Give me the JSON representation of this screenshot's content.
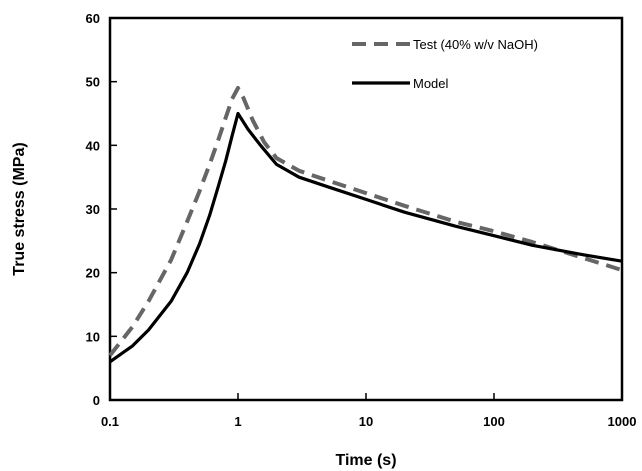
{
  "chart_data": {
    "type": "line",
    "xlabel": "Time (s)",
    "ylabel": "True stress (MPa)",
    "xscale": "log",
    "xlim": [
      0.1,
      1000
    ],
    "ylim": [
      0,
      60
    ],
    "x_ticks": [
      0.1,
      1,
      10,
      100,
      1000
    ],
    "x_tick_labels": [
      "0.1",
      "1",
      "10",
      "100",
      "1000"
    ],
    "y_ticks": [
      0,
      10,
      20,
      30,
      40,
      50,
      60
    ],
    "y_tick_labels": [
      "0",
      "10",
      "20",
      "30",
      "40",
      "50",
      "60"
    ],
    "grid": false,
    "legend_position": "top-right",
    "series": [
      {
        "name": "Test (40% w/v NaOH)",
        "style": "dashed",
        "color": "#666666",
        "x": [
          0.1,
          0.15,
          0.2,
          0.3,
          0.4,
          0.5,
          0.6,
          0.7,
          0.8,
          0.9,
          1.0,
          1.1,
          1.3,
          1.6,
          2,
          3,
          5,
          10,
          20,
          50,
          100,
          200,
          500,
          1000
        ],
        "y": [
          7.0,
          11.5,
          15.5,
          22.0,
          28.0,
          32.8,
          37.0,
          40.8,
          44.3,
          47.3,
          49.0,
          47.5,
          44.0,
          40.5,
          38.0,
          36.0,
          34.5,
          32.5,
          30.5,
          28.0,
          26.5,
          24.8,
          22.3,
          20.4
        ]
      },
      {
        "name": "Model",
        "style": "solid",
        "color": "#000000",
        "x": [
          0.1,
          0.15,
          0.2,
          0.3,
          0.4,
          0.5,
          0.6,
          0.7,
          0.8,
          0.9,
          1.0,
          1.2,
          1.5,
          2,
          3,
          5,
          10,
          20,
          50,
          100,
          200,
          500,
          1000
        ],
        "y": [
          6.0,
          8.5,
          11.0,
          15.5,
          20.0,
          24.5,
          29.0,
          33.5,
          37.5,
          41.5,
          45.0,
          42.5,
          40.0,
          37.0,
          35.0,
          33.5,
          31.5,
          29.5,
          27.3,
          25.8,
          24.3,
          22.8,
          21.8
        ]
      }
    ]
  }
}
